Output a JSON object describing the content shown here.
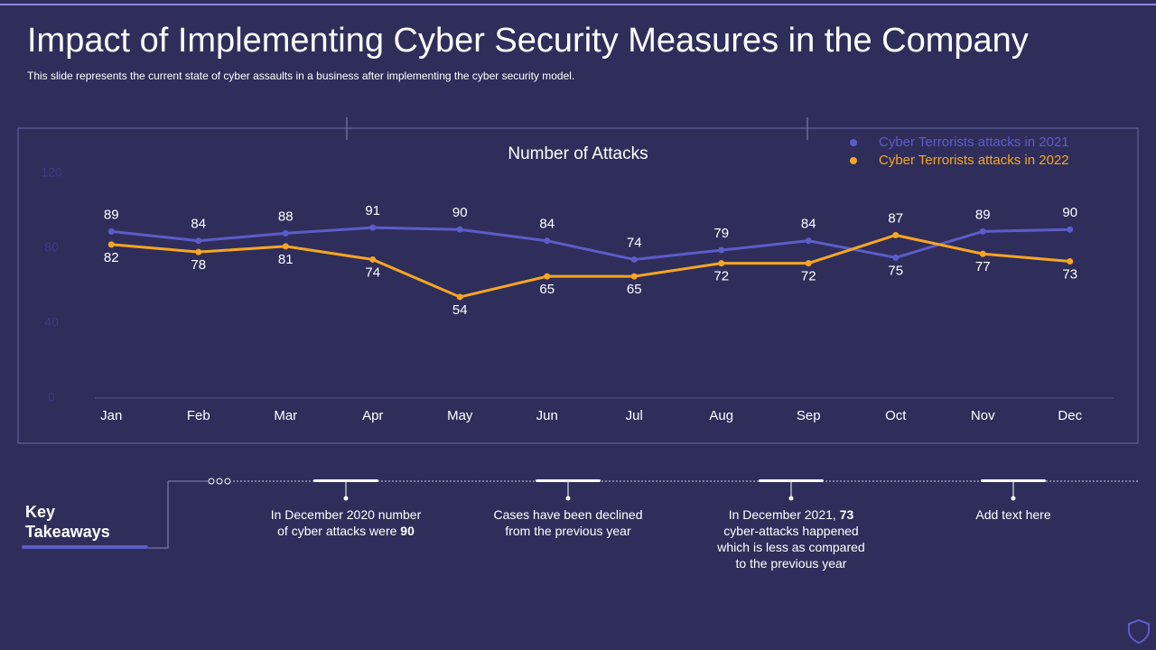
{
  "title": "Impact of Implementing Cyber Security Measures in the Company",
  "subtitle": "This slide represents the current state of cyber assaults in a business after implementing the cyber security model.",
  "chart_data": {
    "type": "line",
    "title": "Number of  Attacks",
    "categories": [
      "Jan",
      "Feb",
      "Mar",
      "Apr",
      "May",
      "Jun",
      "Jul",
      "Aug",
      "Sep",
      "Oct",
      "Nov",
      "Dec"
    ],
    "series": [
      {
        "name": "Cyber Terrorists attacks in 2021",
        "color": "#5c5cc9",
        "values": [
          89,
          84,
          88,
          91,
          90,
          84,
          74,
          79,
          84,
          75,
          89,
          90
        ]
      },
      {
        "name": "Cyber Terrorists attacks in 2022",
        "color": "#f5a623",
        "values": [
          82,
          78,
          81,
          74,
          54,
          65,
          65,
          72,
          72,
          87,
          77,
          73
        ]
      }
    ],
    "ylim": [
      0,
      120
    ],
    "yticks": [
      0,
      40,
      80,
      120
    ],
    "legend": "top-right"
  },
  "key_label": "Key Takeaways",
  "takeaways": [
    {
      "parts": [
        "In December 2020 number of cyber attacks were ",
        "90"
      ]
    },
    {
      "parts": [
        "Cases have been declined from the previous year"
      ]
    },
    {
      "parts": [
        "In December 2021, ",
        "73",
        " cyber-attacks happened which is less as compared to the previous year"
      ]
    },
    {
      "parts": [
        "Add text here"
      ]
    }
  ]
}
